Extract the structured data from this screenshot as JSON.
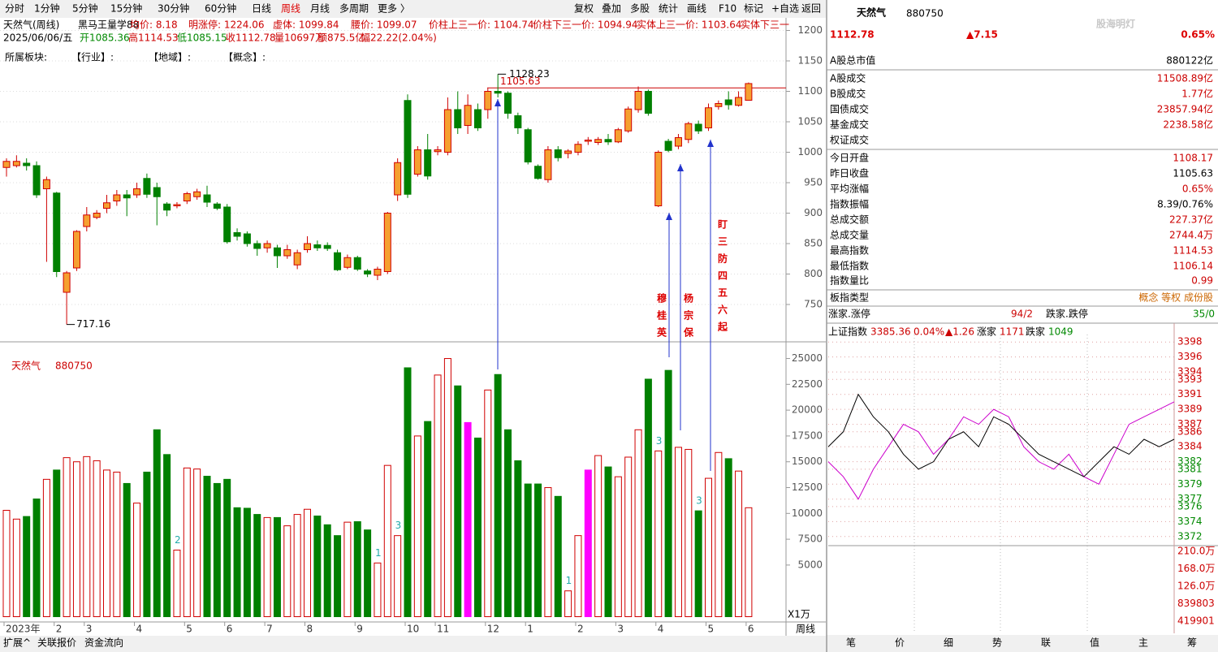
{
  "toolbar": {
    "tabs": [
      "分时",
      "1分钟",
      "5分钟",
      "15分钟",
      "30分钟",
      "60分钟",
      "日线",
      "周线",
      "月线",
      "多周期",
      "更多 〉"
    ],
    "active_index": 7,
    "buttons": [
      "复权",
      "叠加",
      "多股",
      "统计",
      "画线",
      "F10",
      "标记",
      "+自选",
      "返回"
    ]
  },
  "info": {
    "line1": [
      {
        "text": "天然气(周线)",
        "color": "#000"
      },
      {
        "text": "黑马王量学88",
        "color": "#000"
      },
      {
        "text": "均价: 8.18",
        "color": "#c00"
      },
      {
        "text": "明涨停: 1224.06",
        "color": "#c00"
      },
      {
        "text": "虚体: 1099.84",
        "color": "#c00"
      },
      {
        "text": "腰价: 1099.07",
        "color": "#c00"
      },
      {
        "text": "价柱上三一价: 1104.74",
        "color": "#c00"
      },
      {
        "text": "价柱下三一价: 1094.94",
        "color": "#c00"
      },
      {
        "text": "实体上三一价: 1103.64",
        "color": "#c00"
      },
      {
        "text": "实体下三一",
        "color": "#c00"
      }
    ],
    "line2": [
      {
        "text": "2025/06/06/五",
        "color": "#000"
      },
      {
        "text": "开1085.36",
        "color": "#080"
      },
      {
        "text": "高1114.53",
        "color": "#c00"
      },
      {
        "text": "低1085.15",
        "color": "#080"
      },
      {
        "text": "收1112.78",
        "color": "#c00"
      },
      {
        "text": "量10697万",
        "color": "#c00"
      },
      {
        "text": "额875.5亿",
        "color": "#c00"
      },
      {
        "text": "幅22.22(2.04%)",
        "color": "#c00"
      }
    ],
    "line3": [
      "所属板块:",
      "【行业】:",
      "【地域】:",
      "【概念】:"
    ],
    "volume_title": "天然气",
    "volume_code": "880750",
    "unit": "X1万",
    "period": "周线"
  },
  "chart_data": {
    "type": "candlestick",
    "title": "天然气(周线)",
    "categories": [
      "2023年",
      null,
      null,
      null,
      null,
      "2",
      null,
      null,
      "3",
      null,
      null,
      null,
      null,
      "4",
      null,
      null,
      null,
      null,
      "5",
      null,
      null,
      null,
      "6",
      null,
      null,
      null,
      "7",
      null,
      null,
      null,
      "8",
      null,
      null,
      null,
      null,
      "9",
      null,
      null,
      null,
      null,
      "10",
      null,
      null,
      "11",
      null,
      null,
      null,
      null,
      "12",
      null,
      null,
      null,
      "1",
      null,
      null,
      null,
      null,
      "2",
      null,
      null,
      null,
      "3",
      null,
      null,
      null,
      "4",
      null,
      null,
      null,
      null,
      "5",
      null,
      null,
      null,
      "6"
    ],
    "open": [
      975,
      978,
      982,
      978,
      940,
      933,
      770,
      810,
      878,
      893,
      908,
      920,
      930,
      930,
      957,
      942,
      915,
      912,
      920,
      927,
      930,
      915,
      910,
      868,
      866,
      850,
      843,
      843,
      830,
      815,
      840,
      848,
      847,
      835,
      811,
      827,
      805,
      798,
      804,
      930,
      1085,
      964,
      1004,
      1001,
      1000,
      1070,
      1044,
      1070,
      1070,
      1100,
      1097,
      1060,
      1037,
      977,
      955,
      1004,
      998,
      1000,
      1018,
      1016,
      1021,
      1017,
      1035,
      1070,
      1100,
      912,
      1018,
      1010,
      1021,
      1046,
      1040,
      1075,
      1086,
      1077,
      1085.36
    ],
    "high": [
      990,
      995,
      990,
      985,
      960,
      935,
      805,
      872,
      910,
      905,
      930,
      938,
      938,
      950,
      965,
      950,
      918,
      918,
      935,
      940,
      945,
      918,
      915,
      875,
      870,
      855,
      855,
      848,
      848,
      840,
      862,
      855,
      852,
      840,
      832,
      830,
      808,
      812,
      902,
      990,
      1095,
      1010,
      1030,
      1010,
      1090,
      1100,
      1095,
      1080,
      1105,
      1128.23,
      1100,
      1065,
      1040,
      980,
      1010,
      1010,
      1005,
      1018,
      1025,
      1025,
      1030,
      1040,
      1075,
      1108,
      1103,
      1003,
      1022,
      1030,
      1050,
      1052,
      1080,
      1085,
      1100,
      1100,
      1114.53
    ],
    "low": [
      960,
      975,
      970,
      925,
      820,
      795,
      717.16,
      805,
      870,
      890,
      900,
      912,
      895,
      925,
      925,
      880,
      895,
      908,
      915,
      922,
      910,
      905,
      850,
      855,
      845,
      830,
      835,
      810,
      825,
      808,
      835,
      838,
      838,
      805,
      808,
      805,
      795,
      790,
      800,
      920,
      925,
      960,
      955,
      995,
      995,
      1030,
      1030,
      1035,
      1055,
      1090,
      1055,
      1030,
      980,
      955,
      950,
      985,
      990,
      995,
      1012,
      1012,
      1012,
      1015,
      1032,
      1065,
      1060,
      910,
      1000,
      1005,
      1015,
      1030,
      1035,
      1070,
      1070,
      1075,
      1085.15
    ],
    "close": [
      985,
      985,
      978,
      930,
      955,
      804,
      802,
      870,
      897,
      900,
      917,
      930,
      925,
      940,
      931,
      927,
      905,
      914,
      932,
      935,
      918,
      908,
      853,
      862,
      850,
      842,
      850,
      830,
      840,
      835,
      850,
      843,
      842,
      807,
      827,
      808,
      800,
      808,
      900,
      983,
      931,
      1004,
      961,
      1004,
      1070,
      1040,
      1077,
      1040,
      1100,
      1097,
      1064,
      1040,
      984,
      957,
      1004,
      991,
      1002,
      1013,
      1020,
      1021,
      1017,
      1037,
      1071,
      1100,
      1064,
      1000,
      1003,
      1024,
      1047,
      1035,
      1073,
      1080,
      1078,
      1090,
      1112.78
    ],
    "volume": [
      10300,
      9450,
      9700,
      11400,
      13300,
      14200,
      15400,
      15000,
      15500,
      15100,
      14200,
      14000,
      12900,
      11000,
      14000,
      18100,
      15700,
      6450,
      14400,
      14300,
      13600,
      12900,
      13300,
      10550,
      10500,
      9900,
      9600,
      9600,
      8800,
      9900,
      10400,
      9750,
      8900,
      7850,
      9150,
      9200,
      8400,
      5200,
      14650,
      7850,
      24100,
      17500,
      18900,
      23400,
      25000,
      22350,
      18800,
      17300,
      21950,
      23450,
      18100,
      15100,
      12850,
      12850,
      12500,
      11650,
      2500,
      7850,
      14200,
      15600,
      14500,
      13550,
      15450,
      18100,
      23000,
      16050,
      23850,
      16400,
      16200,
      10250,
      13400,
      15900,
      15300,
      14100,
      10550
    ],
    "ylim": [
      690,
      1210
    ],
    "yticks": [
      750,
      800,
      850,
      900,
      950,
      1000,
      1050,
      1100,
      1150,
      1200
    ],
    "volume_ylim": [
      0,
      26300
    ],
    "volume_ticks": [
      5000,
      7500,
      10000,
      12500,
      15000,
      17500,
      20000,
      22500,
      25000
    ],
    "up_color": "#d00000",
    "up_fill": "#f5a030",
    "down_color": "#008000",
    "highlight": {
      "color": "#ff00ff",
      "indices": [
        46,
        58
      ]
    },
    "ref_line": {
      "value": 1105.63,
      "color": "#c00"
    },
    "volume_notes": [
      {
        "index": 17,
        "label": "2"
      },
      {
        "index": 37,
        "label": "1"
      },
      {
        "index": 39,
        "label": "3"
      },
      {
        "index": 56,
        "label": "1"
      },
      {
        "index": 65,
        "label": "3"
      },
      {
        "index": 69,
        "label": "3"
      }
    ],
    "annotations": [
      "穆桂英",
      "杨宗保",
      "盯三防四五六起"
    ]
  },
  "quote": {
    "name": "天然气",
    "code": "880750",
    "price": "1112.78",
    "change": "▲7.15",
    "pct": "0.65%",
    "watermark": "股海明灯"
  },
  "stats": [
    {
      "label": "A股总市值",
      "value": "880122亿",
      "color": "#000"
    },
    {
      "label": "A股成交",
      "value": "11508.89亿",
      "color": "#c00"
    },
    {
      "label": "B股成交",
      "value": "1.77亿",
      "color": "#c00"
    },
    {
      "label": "国债成交",
      "value": "23857.94亿",
      "color": "#c00"
    },
    {
      "label": "基金成交",
      "value": "2238.58亿",
      "color": "#c00"
    },
    {
      "label": "权证成交",
      "value": null,
      "color": "#000"
    },
    {
      "label": "今日开盘",
      "value": "1108.17",
      "color": "#c00"
    },
    {
      "label": "昨日收盘",
      "value": "1105.63",
      "color": "#000"
    },
    {
      "label": "平均涨幅",
      "value": "0.65%",
      "color": "#c00"
    },
    {
      "label": "指数振幅",
      "value": "8.39/0.76%",
      "color": "#000"
    },
    {
      "label": "总成交额",
      "value": "227.37亿",
      "color": "#c00"
    },
    {
      "label": "总成交量",
      "value": "2744.4万",
      "color": "#c00"
    },
    {
      "label": "最高指数",
      "value": "1114.53",
      "color": "#c00"
    },
    {
      "label": "最低指数",
      "value": "1106.14",
      "color": "#c00"
    },
    {
      "label": "指数量比",
      "value": "0.99",
      "color": "#c00"
    }
  ],
  "board": {
    "label": "板指类型",
    "value": "概念 等权 成份股",
    "up_label": "涨家.涨停",
    "up_value": "94/2",
    "down_label": "跌家.跌停",
    "down_value": "35/0"
  },
  "intraday": {
    "header": [
      {
        "text": "上证指数",
        "color": "#000"
      },
      {
        "text": "3385.36",
        "color": "#c00"
      },
      {
        "text": "0.04%",
        "color": "#c00"
      },
      {
        "text": "▲1.26",
        "color": "#c00"
      },
      {
        "text": "涨家",
        "color": "#000"
      },
      {
        "text": "1171",
        "color": "#c00"
      },
      {
        "text": "跌家",
        "color": "#000"
      },
      {
        "text": "1049",
        "color": "#080"
      }
    ],
    "ylim": [
      3371,
      3399
    ],
    "yticks": [
      3372,
      3374,
      3376,
      3377,
      3379,
      3381,
      3382,
      3384,
      3386,
      3387,
      3389,
      3391,
      3393,
      3394,
      3396,
      3398
    ],
    "index_line": [
      3384,
      3386,
      3391,
      3388,
      3386,
      3383,
      3381,
      3382,
      3385,
      3386,
      3384,
      3388,
      3387,
      3385,
      3383,
      3382,
      3381,
      3380,
      3382,
      3384,
      3383,
      3385,
      3384,
      3385
    ],
    "avg_line": [
      3382,
      3380,
      3377,
      3381,
      3384,
      3387,
      3386,
      3383,
      3385,
      3388,
      3387,
      3389,
      3388,
      3384,
      3382,
      3381,
      3383,
      3380,
      3379,
      3383,
      3387,
      3388,
      3389,
      3390
    ],
    "volume_labels": [
      "210.0万",
      "168.0万",
      "126.0万",
      "839803",
      "419901"
    ],
    "tabs": [
      "笔",
      "价",
      "细",
      "势",
      "联",
      "值",
      "主",
      "筹"
    ]
  },
  "bottom_tabs": [
    "扩展^",
    "关联报价",
    "资金流向"
  ]
}
